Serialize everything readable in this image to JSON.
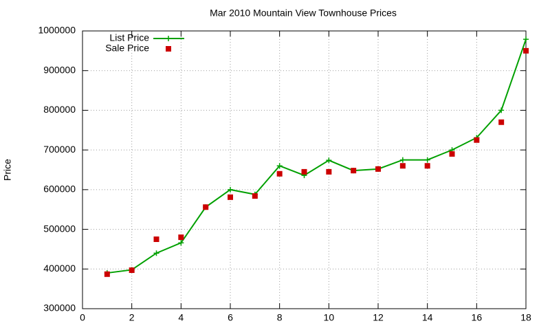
{
  "chart_data": {
    "type": "line",
    "title": "Mar 2010 Mountain View Townhouse Prices",
    "ylabel": "Price",
    "x": [
      1,
      2,
      3,
      4,
      5,
      6,
      7,
      8,
      9,
      10,
      11,
      12,
      13,
      14,
      15,
      16,
      17,
      18
    ],
    "series": [
      {
        "name": "List Price",
        "color": "#00a000",
        "line": true,
        "marker": "plus",
        "values": [
          390000,
          398000,
          440000,
          466000,
          556000,
          600000,
          588000,
          660000,
          636000,
          674000,
          648000,
          652000,
          675000,
          675000,
          700000,
          731000,
          800000,
          979000
        ]
      },
      {
        "name": "Sale Price",
        "color": "#cc0000",
        "line": false,
        "marker": "square",
        "values": [
          387000,
          397000,
          475000,
          480000,
          556000,
          581000,
          584000,
          640000,
          645000,
          645000,
          648000,
          652000,
          660000,
          660000,
          690000,
          725000,
          770000,
          950000
        ]
      }
    ],
    "xlim": [
      0,
      18
    ],
    "xticks": [
      0,
      2,
      4,
      6,
      8,
      10,
      12,
      14,
      16,
      18
    ],
    "ylim": [
      300000,
      1000000
    ],
    "yticks": [
      300000,
      400000,
      500000,
      600000,
      700000,
      800000,
      900000,
      1000000
    ],
    "grid": true,
    "legend": "top-left"
  }
}
